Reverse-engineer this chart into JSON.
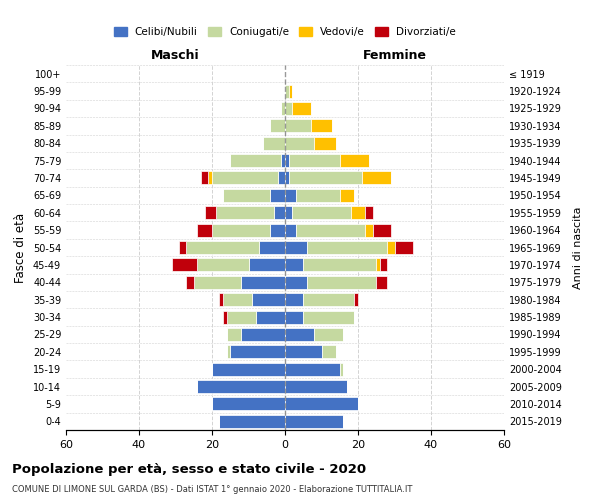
{
  "age_groups": [
    "0-4",
    "5-9",
    "10-14",
    "15-19",
    "20-24",
    "25-29",
    "30-34",
    "35-39",
    "40-44",
    "45-49",
    "50-54",
    "55-59",
    "60-64",
    "65-69",
    "70-74",
    "75-79",
    "80-84",
    "85-89",
    "90-94",
    "95-99",
    "100+"
  ],
  "birth_years": [
    "2015-2019",
    "2010-2014",
    "2005-2009",
    "2000-2004",
    "1995-1999",
    "1990-1994",
    "1985-1989",
    "1980-1984",
    "1975-1979",
    "1970-1974",
    "1965-1969",
    "1960-1964",
    "1955-1959",
    "1950-1954",
    "1945-1949",
    "1940-1944",
    "1935-1939",
    "1930-1934",
    "1925-1929",
    "1920-1924",
    "≤ 1919"
  ],
  "male": {
    "celibi": [
      18,
      20,
      24,
      20,
      15,
      12,
      8,
      9,
      12,
      10,
      7,
      4,
      3,
      4,
      2,
      1,
      0,
      0,
      0,
      0,
      0
    ],
    "coniugati": [
      0,
      0,
      0,
      0,
      1,
      4,
      8,
      8,
      13,
      14,
      20,
      16,
      16,
      13,
      18,
      14,
      6,
      4,
      1,
      0,
      0
    ],
    "vedovi": [
      0,
      0,
      0,
      0,
      0,
      0,
      0,
      0,
      0,
      0,
      0,
      0,
      0,
      0,
      1,
      0,
      0,
      0,
      0,
      0,
      0
    ],
    "divorziati": [
      0,
      0,
      0,
      0,
      0,
      0,
      1,
      1,
      2,
      7,
      2,
      4,
      3,
      0,
      2,
      0,
      0,
      0,
      0,
      0,
      0
    ]
  },
  "female": {
    "nubili": [
      16,
      20,
      17,
      15,
      10,
      8,
      5,
      5,
      6,
      5,
      6,
      3,
      2,
      3,
      1,
      1,
      0,
      0,
      0,
      0,
      0
    ],
    "coniugate": [
      0,
      0,
      0,
      1,
      4,
      8,
      14,
      14,
      19,
      20,
      22,
      19,
      16,
      12,
      20,
      14,
      8,
      7,
      2,
      1,
      0
    ],
    "vedove": [
      0,
      0,
      0,
      0,
      0,
      0,
      0,
      0,
      0,
      1,
      2,
      2,
      4,
      4,
      8,
      8,
      6,
      6,
      5,
      1,
      0
    ],
    "divorziate": [
      0,
      0,
      0,
      0,
      0,
      0,
      0,
      1,
      3,
      2,
      5,
      5,
      2,
      0,
      0,
      0,
      0,
      0,
      0,
      0,
      0
    ]
  },
  "colors": {
    "celibi": "#4472c4",
    "coniugati": "#c5d9a0",
    "vedovi": "#ffc000",
    "divorziati": "#c0000b"
  },
  "xlim": 60,
  "title": "Popolazione per età, sesso e stato civile - 2020",
  "subtitle": "COMUNE DI LIMONE SUL GARDA (BS) - Dati ISTAT 1° gennaio 2020 - Elaborazione TUTTITALIA.IT",
  "ylabel": "Fasce di età",
  "ylabel_right": "Anni di nascita",
  "xlabel_maschi": "Maschi",
  "xlabel_femmine": "Femmine",
  "legend_labels": [
    "Celibi/Nubili",
    "Coniugati/e",
    "Vedovi/e",
    "Divorziati/e"
  ]
}
